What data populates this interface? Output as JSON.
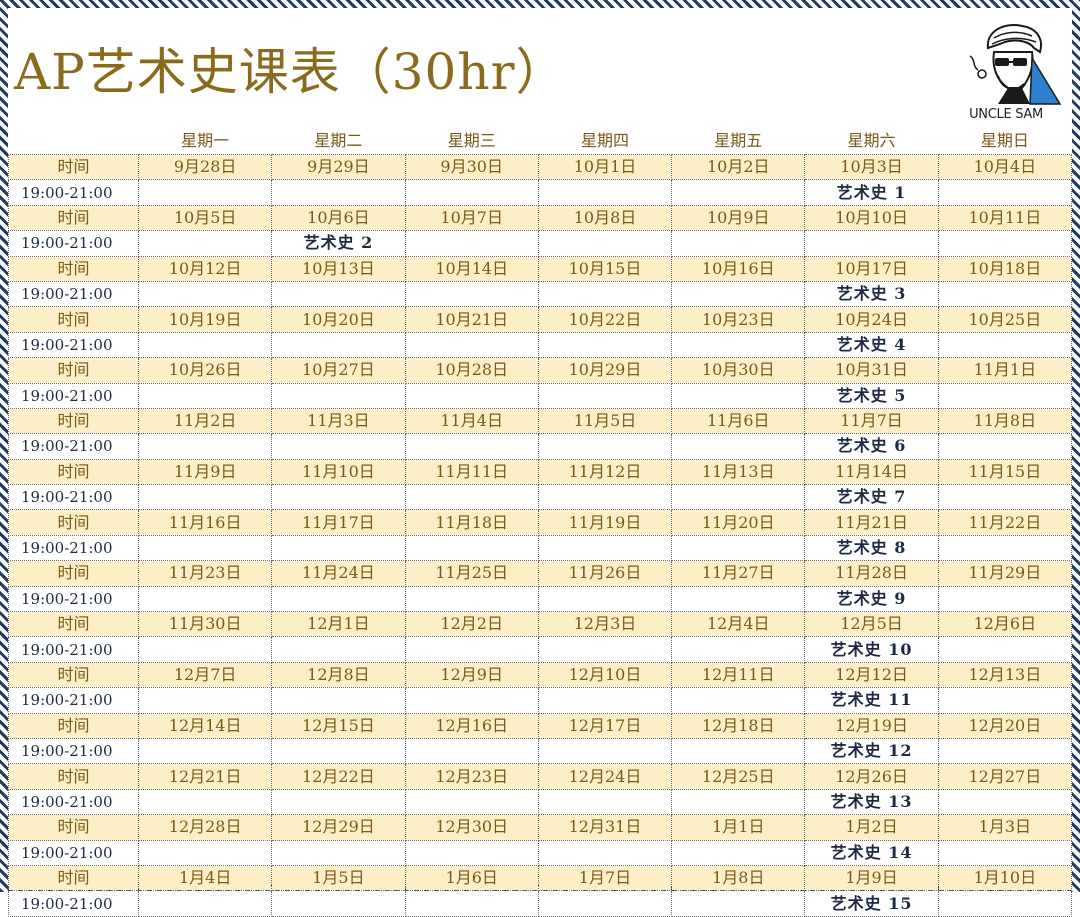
{
  "title": "AP艺术史课表（30hr）",
  "logo": {
    "text": "UNCLE SAM",
    "icon": "uncle-sam-portrait-icon"
  },
  "colors": {
    "date_row_bg": "#fcefc7",
    "lesson_bg": "#dde7f4",
    "accent_text": "#7a5a14",
    "frame": "#1f3a67"
  },
  "weekdays": [
    "星期一",
    "星期二",
    "星期三",
    "星期四",
    "星期五",
    "星期六",
    "星期日"
  ],
  "date_label": "时间",
  "slot_label": "19:00-21:00",
  "weeks": [
    {
      "dates": [
        "9月28日",
        "9月29日",
        "9月30日",
        "10月1日",
        "10月2日",
        "10月3日",
        "10月4日"
      ],
      "lesson": {
        "day": 5,
        "text": "艺术史 1"
      }
    },
    {
      "dates": [
        "10月5日",
        "10月6日",
        "10月7日",
        "10月8日",
        "10月9日",
        "10月10日",
        "10月11日"
      ],
      "lesson": {
        "day": 1,
        "text": "艺术史 2"
      }
    },
    {
      "dates": [
        "10月12日",
        "10月13日",
        "10月14日",
        "10月15日",
        "10月16日",
        "10月17日",
        "10月18日"
      ],
      "lesson": {
        "day": 5,
        "text": "艺术史 3"
      }
    },
    {
      "dates": [
        "10月19日",
        "10月20日",
        "10月21日",
        "10月22日",
        "10月23日",
        "10月24日",
        "10月25日"
      ],
      "lesson": {
        "day": 5,
        "text": "艺术史 4"
      }
    },
    {
      "dates": [
        "10月26日",
        "10月27日",
        "10月28日",
        "10月29日",
        "10月30日",
        "10月31日",
        "11月1日"
      ],
      "lesson": {
        "day": 5,
        "text": "艺术史 5"
      }
    },
    {
      "dates": [
        "11月2日",
        "11月3日",
        "11月4日",
        "11月5日",
        "11月6日",
        "11月7日",
        "11月8日"
      ],
      "lesson": {
        "day": 5,
        "text": "艺术史 6"
      }
    },
    {
      "dates": [
        "11月9日",
        "11月10日",
        "11月11日",
        "11月12日",
        "11月13日",
        "11月14日",
        "11月15日"
      ],
      "lesson": {
        "day": 5,
        "text": "艺术史 7"
      }
    },
    {
      "dates": [
        "11月16日",
        "11月17日",
        "11月18日",
        "11月19日",
        "11月20日",
        "11月21日",
        "11月22日"
      ],
      "lesson": {
        "day": 5,
        "text": "艺术史 8"
      }
    },
    {
      "dates": [
        "11月23日",
        "11月24日",
        "11月25日",
        "11月26日",
        "11月27日",
        "11月28日",
        "11月29日"
      ],
      "lesson": {
        "day": 5,
        "text": "艺术史 9"
      }
    },
    {
      "dates": [
        "11月30日",
        "12月1日",
        "12月2日",
        "12月3日",
        "12月4日",
        "12月5日",
        "12月6日"
      ],
      "lesson": {
        "day": 5,
        "text": "艺术史 10"
      }
    },
    {
      "dates": [
        "12月7日",
        "12月8日",
        "12月9日",
        "12月10日",
        "12月11日",
        "12月12日",
        "12月13日"
      ],
      "lesson": {
        "day": 5,
        "text": "艺术史 11"
      }
    },
    {
      "dates": [
        "12月14日",
        "12月15日",
        "12月16日",
        "12月17日",
        "12月18日",
        "12月19日",
        "12月20日"
      ],
      "lesson": {
        "day": 5,
        "text": "艺术史 12"
      }
    },
    {
      "dates": [
        "12月21日",
        "12月22日",
        "12月23日",
        "12月24日",
        "12月25日",
        "12月26日",
        "12月27日"
      ],
      "lesson": {
        "day": 5,
        "text": "艺术史 13"
      }
    },
    {
      "dates": [
        "12月28日",
        "12月29日",
        "12月30日",
        "12月31日",
        "1月1日",
        "1月2日",
        "1月3日"
      ],
      "lesson": {
        "day": 5,
        "text": "艺术史 14"
      }
    },
    {
      "dates": [
        "1月4日",
        "1月5日",
        "1月6日",
        "1月7日",
        "1月8日",
        "1月9日",
        "1月10日"
      ],
      "lesson": {
        "day": 5,
        "text": "艺术史 15"
      }
    }
  ]
}
